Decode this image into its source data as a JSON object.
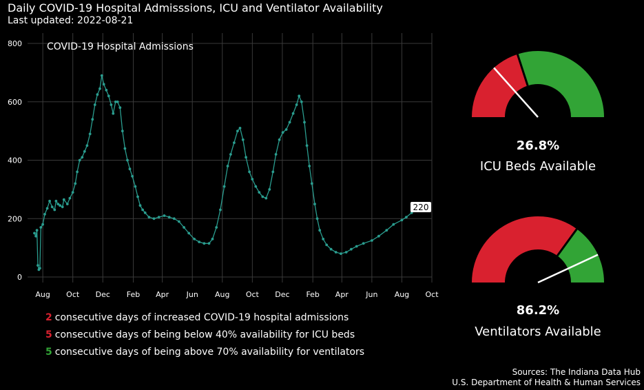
{
  "title": "Daily COVID-19 Hospital Admisssions, ICU and Ventilator Availability",
  "subtitle": "Last updated: 2022-08-21",
  "chart_data": {
    "type": "line",
    "title": "COVID-19 Hospital Admissions",
    "x_range": [
      "2020-07-01",
      "2022-10-01"
    ],
    "ylim": [
      0,
      800
    ],
    "y_ticks": [
      0,
      200,
      400,
      600,
      800
    ],
    "x_tick_labels": [
      "Aug",
      "Oct",
      "Dec",
      "Feb",
      "Apr",
      "Jun",
      "Aug",
      "Oct",
      "Dec",
      "Feb",
      "Apr",
      "Jun",
      "Aug",
      "Oct"
    ],
    "x_tick_dates": [
      "2020-08-01",
      "2020-10-01",
      "2020-12-01",
      "2021-02-01",
      "2021-04-01",
      "2021-06-01",
      "2021-08-01",
      "2021-10-01",
      "2021-12-01",
      "2022-02-01",
      "2022-04-01",
      "2022-06-01",
      "2022-08-01",
      "2022-10-01"
    ],
    "grid": true,
    "line_color": "#2a9d8f",
    "latest_label": "220",
    "series": [
      {
        "points": [
          [
            "2020-07-15",
            150
          ],
          [
            "2020-07-18",
            140
          ],
          [
            "2020-07-20",
            160
          ],
          [
            "2020-07-22",
            40
          ],
          [
            "2020-07-24",
            25
          ],
          [
            "2020-07-26",
            30
          ],
          [
            "2020-07-28",
            170
          ],
          [
            "2020-08-01",
            180
          ],
          [
            "2020-08-05",
            215
          ],
          [
            "2020-08-10",
            235
          ],
          [
            "2020-08-15",
            260
          ],
          [
            "2020-08-20",
            240
          ],
          [
            "2020-08-25",
            230
          ],
          [
            "2020-08-28",
            260
          ],
          [
            "2020-09-01",
            250
          ],
          [
            "2020-09-05",
            245
          ],
          [
            "2020-09-10",
            240
          ],
          [
            "2020-09-13",
            265
          ],
          [
            "2020-09-20",
            250
          ],
          [
            "2020-09-25",
            270
          ],
          [
            "2020-10-01",
            290
          ],
          [
            "2020-10-06",
            320
          ],
          [
            "2020-10-10",
            360
          ],
          [
            "2020-10-15",
            400
          ],
          [
            "2020-10-20",
            410
          ],
          [
            "2020-10-25",
            430
          ],
          [
            "2020-10-30",
            450
          ],
          [
            "2020-11-05",
            490
          ],
          [
            "2020-11-10",
            540
          ],
          [
            "2020-11-15",
            590
          ],
          [
            "2020-11-20",
            625
          ],
          [
            "2020-11-25",
            645
          ],
          [
            "2020-11-29",
            690
          ],
          [
            "2020-12-03",
            660
          ],
          [
            "2020-12-08",
            640
          ],
          [
            "2020-12-13",
            620
          ],
          [
            "2020-12-18",
            590
          ],
          [
            "2020-12-22",
            560
          ],
          [
            "2020-12-27",
            600
          ],
          [
            "2020-12-31",
            600
          ],
          [
            "2021-01-05",
            580
          ],
          [
            "2021-01-10",
            500
          ],
          [
            "2021-01-15",
            440
          ],
          [
            "2021-01-20",
            400
          ],
          [
            "2021-01-25",
            370
          ],
          [
            "2021-01-30",
            345
          ],
          [
            "2021-02-05",
            310
          ],
          [
            "2021-02-10",
            275
          ],
          [
            "2021-02-15",
            245
          ],
          [
            "2021-02-20",
            230
          ],
          [
            "2021-02-25",
            220
          ],
          [
            "2021-03-05",
            205
          ],
          [
            "2021-03-15",
            200
          ],
          [
            "2021-03-25",
            205
          ],
          [
            "2021-04-05",
            210
          ],
          [
            "2021-04-15",
            205
          ],
          [
            "2021-04-25",
            200
          ],
          [
            "2021-05-05",
            190
          ],
          [
            "2021-05-15",
            170
          ],
          [
            "2021-05-25",
            150
          ],
          [
            "2021-06-05",
            130
          ],
          [
            "2021-06-15",
            120
          ],
          [
            "2021-06-25",
            115
          ],
          [
            "2021-07-05",
            115
          ],
          [
            "2021-07-12",
            130
          ],
          [
            "2021-07-20",
            170
          ],
          [
            "2021-07-28",
            230
          ],
          [
            "2021-08-05",
            310
          ],
          [
            "2021-08-12",
            380
          ],
          [
            "2021-08-18",
            420
          ],
          [
            "2021-08-25",
            460
          ],
          [
            "2021-09-01",
            500
          ],
          [
            "2021-09-06",
            510
          ],
          [
            "2021-09-12",
            470
          ],
          [
            "2021-09-18",
            410
          ],
          [
            "2021-09-25",
            360
          ],
          [
            "2021-10-01",
            335
          ],
          [
            "2021-10-08",
            310
          ],
          [
            "2021-10-15",
            290
          ],
          [
            "2021-10-22",
            275
          ],
          [
            "2021-10-29",
            270
          ],
          [
            "2021-11-05",
            300
          ],
          [
            "2021-11-12",
            360
          ],
          [
            "2021-11-18",
            420
          ],
          [
            "2021-11-25",
            470
          ],
          [
            "2021-12-02",
            495
          ],
          [
            "2021-12-09",
            505
          ],
          [
            "2021-12-16",
            530
          ],
          [
            "2021-12-23",
            560
          ],
          [
            "2021-12-30",
            590
          ],
          [
            "2022-01-04",
            620
          ],
          [
            "2022-01-09",
            600
          ],
          [
            "2022-01-15",
            530
          ],
          [
            "2022-01-20",
            450
          ],
          [
            "2022-01-25",
            380
          ],
          [
            "2022-01-30",
            320
          ],
          [
            "2022-02-05",
            250
          ],
          [
            "2022-02-10",
            200
          ],
          [
            "2022-02-15",
            160
          ],
          [
            "2022-02-22",
            130
          ],
          [
            "2022-03-01",
            110
          ],
          [
            "2022-03-10",
            95
          ],
          [
            "2022-03-20",
            85
          ],
          [
            "2022-03-30",
            80
          ],
          [
            "2022-04-10",
            85
          ],
          [
            "2022-04-20",
            95
          ],
          [
            "2022-05-01",
            105
          ],
          [
            "2022-05-15",
            115
          ],
          [
            "2022-06-01",
            125
          ],
          [
            "2022-06-15",
            140
          ],
          [
            "2022-07-01",
            160
          ],
          [
            "2022-07-15",
            180
          ],
          [
            "2022-08-01",
            195
          ],
          [
            "2022-08-10",
            205
          ],
          [
            "2022-08-21",
            220
          ]
        ]
      }
    ]
  },
  "stats": [
    {
      "number": "2",
      "text": "consecutive days of increased COVID-19 hospital admissions",
      "color": "#d9212f"
    },
    {
      "number": "5",
      "text": "consecutive days of being below 40% availability for ICU beds",
      "color": "#d9212f"
    },
    {
      "number": "5",
      "text": "consecutive days of being above 70% availability for ventilators",
      "color": "#32a436"
    }
  ],
  "gauges": [
    {
      "value_text": "26.8%",
      "value": 26.8,
      "threshold": 40,
      "label": "ICU Beds Available",
      "low_color": "#d9212f",
      "high_color": "#32a436"
    },
    {
      "value_text": "86.2%",
      "value": 86.2,
      "threshold": 70,
      "label": "Ventilators Available",
      "low_color": "#d9212f",
      "high_color": "#32a436"
    }
  ],
  "sources": {
    "line1": "Sources: The Indiana Data Hub",
    "line2": "U.S. Department of Health & Human Services"
  }
}
